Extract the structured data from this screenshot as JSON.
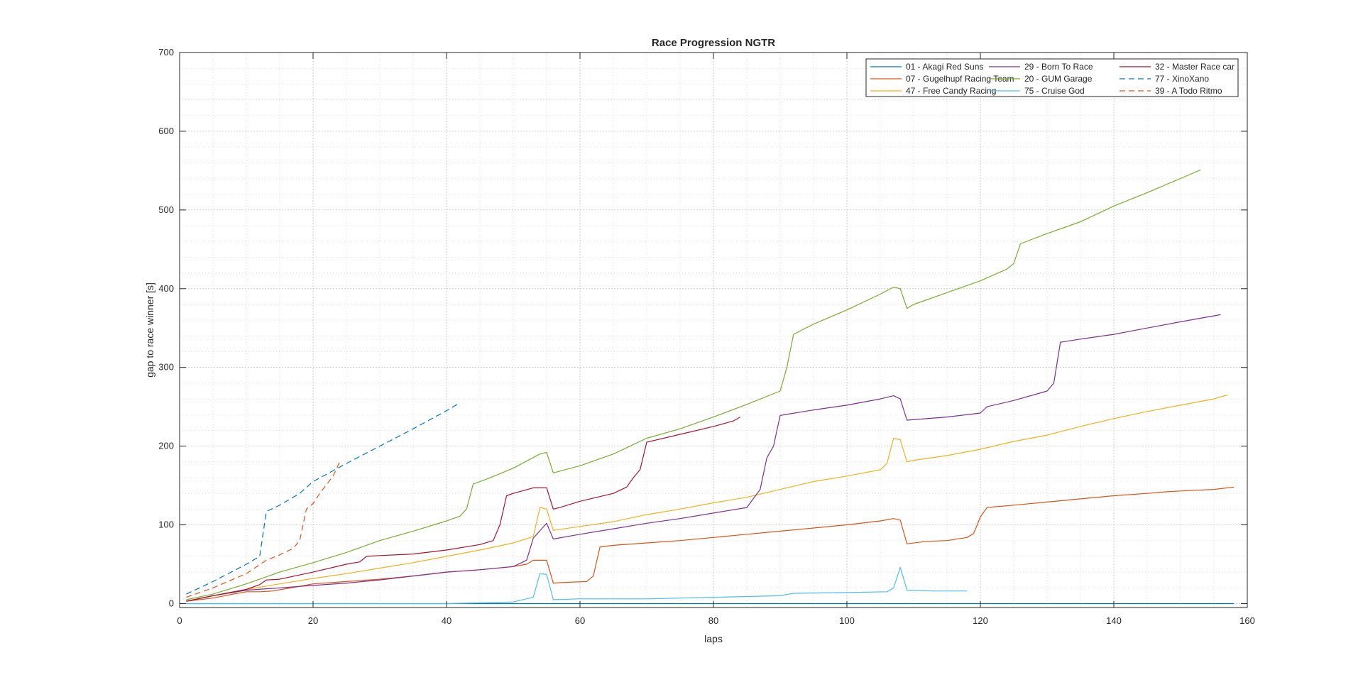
{
  "chart_data": {
    "type": "line",
    "title": "Race Progression NGTR",
    "xlabel": "laps",
    "ylabel": "gap to race winner [s]",
    "xlim": [
      0,
      160
    ],
    "ylim": [
      -5,
      700
    ],
    "xticks": [
      0,
      20,
      40,
      60,
      80,
      100,
      120,
      140,
      160
    ],
    "yticks": [
      0,
      100,
      200,
      300,
      400,
      500,
      600,
      700
    ],
    "grid": true,
    "minor_grid": true,
    "legend_position": "top-right",
    "series": [
      {
        "name": "01 - Akagi Red Suns",
        "color": "#0072BD",
        "dash": "solid",
        "points": [
          [
            1,
            0
          ],
          [
            158,
            0
          ]
        ]
      },
      {
        "name": "07 - Gugelhupf Racing Team",
        "color": "#D95319",
        "dash": "solid",
        "points": [
          [
            1,
            3
          ],
          [
            5,
            7
          ],
          [
            8,
            12
          ],
          [
            10,
            15
          ],
          [
            12,
            15
          ],
          [
            14,
            16
          ],
          [
            16,
            19
          ],
          [
            18,
            22
          ],
          [
            20,
            25
          ],
          [
            25,
            28
          ],
          [
            30,
            31
          ],
          [
            35,
            35
          ],
          [
            40,
            40
          ],
          [
            45,
            43
          ],
          [
            50,
            47
          ],
          [
            52,
            50
          ],
          [
            53,
            55
          ],
          [
            55,
            55
          ],
          [
            56,
            26
          ],
          [
            58,
            27
          ],
          [
            61,
            28
          ],
          [
            62,
            35
          ],
          [
            63,
            72
          ],
          [
            65,
            74
          ],
          [
            70,
            77
          ],
          [
            75,
            80
          ],
          [
            80,
            84
          ],
          [
            85,
            88
          ],
          [
            90,
            92
          ],
          [
            95,
            96
          ],
          [
            100,
            100
          ],
          [
            105,
            105
          ],
          [
            107,
            108
          ],
          [
            108,
            106
          ],
          [
            109,
            76
          ],
          [
            112,
            79
          ],
          [
            115,
            80
          ],
          [
            118,
            84
          ],
          [
            119,
            89
          ],
          [
            120,
            110
          ],
          [
            121,
            122
          ],
          [
            125,
            125
          ],
          [
            130,
            129
          ],
          [
            135,
            133
          ],
          [
            140,
            137
          ],
          [
            145,
            140
          ],
          [
            148,
            142
          ],
          [
            150,
            143
          ],
          [
            155,
            145
          ],
          [
            158,
            148
          ]
        ]
      },
      {
        "name": "47 - Free Candy Racing",
        "color": "#EDB120",
        "dash": "solid",
        "points": [
          [
            1,
            3
          ],
          [
            5,
            10
          ],
          [
            10,
            18
          ],
          [
            15,
            25
          ],
          [
            20,
            32
          ],
          [
            25,
            38
          ],
          [
            30,
            45
          ],
          [
            35,
            52
          ],
          [
            40,
            60
          ],
          [
            45,
            68
          ],
          [
            50,
            77
          ],
          [
            53,
            85
          ],
          [
            54,
            122
          ],
          [
            55,
            120
          ],
          [
            56,
            93
          ],
          [
            60,
            98
          ],
          [
            65,
            104
          ],
          [
            70,
            113
          ],
          [
            75,
            120
          ],
          [
            80,
            128
          ],
          [
            85,
            135
          ],
          [
            90,
            145
          ],
          [
            95,
            155
          ],
          [
            100,
            162
          ],
          [
            105,
            170
          ],
          [
            106,
            178
          ],
          [
            107,
            210
          ],
          [
            108,
            208
          ],
          [
            109,
            180
          ],
          [
            110,
            182
          ],
          [
            115,
            188
          ],
          [
            120,
            196
          ],
          [
            125,
            206
          ],
          [
            130,
            214
          ],
          [
            135,
            225
          ],
          [
            140,
            235
          ],
          [
            145,
            244
          ],
          [
            150,
            252
          ],
          [
            155,
            260
          ],
          [
            157,
            265
          ]
        ]
      },
      {
        "name": "29 - Born To Race",
        "color": "#7E2F8E",
        "dash": "solid",
        "points": [
          [
            1,
            3
          ],
          [
            5,
            10
          ],
          [
            10,
            17
          ],
          [
            15,
            20
          ],
          [
            20,
            23
          ],
          [
            25,
            26
          ],
          [
            30,
            30
          ],
          [
            35,
            35
          ],
          [
            40,
            40
          ],
          [
            45,
            43
          ],
          [
            50,
            47
          ],
          [
            52,
            55
          ],
          [
            53,
            83
          ],
          [
            55,
            102
          ],
          [
            56,
            82
          ],
          [
            60,
            88
          ],
          [
            65,
            95
          ],
          [
            70,
            102
          ],
          [
            75,
            108
          ],
          [
            80,
            115
          ],
          [
            85,
            122
          ],
          [
            87,
            145
          ],
          [
            88,
            185
          ],
          [
            89,
            200
          ],
          [
            90,
            239
          ],
          [
            95,
            246
          ],
          [
            100,
            252
          ],
          [
            105,
            260
          ],
          [
            107,
            264
          ],
          [
            108,
            260
          ],
          [
            109,
            233
          ],
          [
            115,
            237
          ],
          [
            120,
            242
          ],
          [
            121,
            250
          ],
          [
            125,
            258
          ],
          [
            130,
            270
          ],
          [
            131,
            280
          ],
          [
            132,
            332
          ],
          [
            135,
            336
          ],
          [
            140,
            342
          ],
          [
            145,
            350
          ],
          [
            150,
            358
          ],
          [
            156,
            367
          ]
        ]
      },
      {
        "name": "20 - GUM Garage",
        "color": "#77AC30",
        "dash": "solid",
        "points": [
          [
            1,
            5
          ],
          [
            5,
            12
          ],
          [
            10,
            25
          ],
          [
            15,
            40
          ],
          [
            20,
            52
          ],
          [
            25,
            65
          ],
          [
            30,
            80
          ],
          [
            35,
            92
          ],
          [
            40,
            105
          ],
          [
            42,
            111
          ],
          [
            43,
            120
          ],
          [
            44,
            152
          ],
          [
            46,
            158
          ],
          [
            50,
            172
          ],
          [
            54,
            190
          ],
          [
            55,
            192
          ],
          [
            56,
            166
          ],
          [
            60,
            175
          ],
          [
            65,
            190
          ],
          [
            70,
            210
          ],
          [
            75,
            222
          ],
          [
            80,
            237
          ],
          [
            85,
            253
          ],
          [
            90,
            270
          ],
          [
            91,
            300
          ],
          [
            92,
            342
          ],
          [
            95,
            355
          ],
          [
            100,
            373
          ],
          [
            105,
            393
          ],
          [
            107,
            402
          ],
          [
            108,
            400
          ],
          [
            109,
            375
          ],
          [
            110,
            380
          ],
          [
            115,
            395
          ],
          [
            120,
            410
          ],
          [
            124,
            425
          ],
          [
            125,
            432
          ],
          [
            126,
            457
          ],
          [
            130,
            470
          ],
          [
            135,
            485
          ],
          [
            140,
            505
          ],
          [
            145,
            522
          ],
          [
            150,
            540
          ],
          [
            153,
            551
          ]
        ]
      },
      {
        "name": "75 - Cruise God",
        "color": "#4DBEEE",
        "dash": "solid",
        "points": [
          [
            1,
            0
          ],
          [
            10,
            0
          ],
          [
            20,
            0
          ],
          [
            30,
            0
          ],
          [
            40,
            0
          ],
          [
            50,
            2
          ],
          [
            53,
            8
          ],
          [
            54,
            38
          ],
          [
            55,
            37
          ],
          [
            56,
            5
          ],
          [
            60,
            6
          ],
          [
            70,
            6
          ],
          [
            80,
            8
          ],
          [
            90,
            10
          ],
          [
            92,
            13
          ],
          [
            100,
            14
          ],
          [
            106,
            15
          ],
          [
            107,
            20
          ],
          [
            108,
            46
          ],
          [
            109,
            17
          ],
          [
            113,
            16
          ],
          [
            118,
            16
          ]
        ]
      },
      {
        "name": "32 - Master Race car",
        "color": "#A2142F",
        "dash": "solid",
        "points": [
          [
            1,
            3
          ],
          [
            5,
            10
          ],
          [
            10,
            18
          ],
          [
            12,
            24
          ],
          [
            13,
            30
          ],
          [
            15,
            31
          ],
          [
            20,
            40
          ],
          [
            25,
            50
          ],
          [
            27,
            53
          ],
          [
            28,
            60
          ],
          [
            30,
            61
          ],
          [
            35,
            63
          ],
          [
            40,
            68
          ],
          [
            45,
            75
          ],
          [
            47,
            80
          ],
          [
            48,
            100
          ],
          [
            49,
            137
          ],
          [
            50,
            140
          ],
          [
            53,
            147
          ],
          [
            55,
            147
          ],
          [
            56,
            120
          ],
          [
            57,
            122
          ],
          [
            60,
            130
          ],
          [
            65,
            140
          ],
          [
            67,
            148
          ],
          [
            68,
            160
          ],
          [
            69,
            170
          ],
          [
            70,
            205
          ],
          [
            75,
            215
          ],
          [
            80,
            225
          ],
          [
            83,
            232
          ],
          [
            84,
            237
          ]
        ]
      },
      {
        "name": "77 - XinoXano",
        "color": "#0072BD",
        "dash": "dashed",
        "points": [
          [
            1,
            12
          ],
          [
            5,
            28
          ],
          [
            10,
            50
          ],
          [
            12,
            60
          ],
          [
            13,
            117
          ],
          [
            15,
            125
          ],
          [
            18,
            140
          ],
          [
            20,
            155
          ],
          [
            25,
            178
          ],
          [
            30,
            200
          ],
          [
            35,
            222
          ],
          [
            40,
            245
          ],
          [
            42,
            255
          ]
        ]
      },
      {
        "name": "39 - A Todo Ritmo",
        "color": "#D95319",
        "dash": "dashed",
        "points": [
          [
            1,
            8
          ],
          [
            5,
            20
          ],
          [
            10,
            38
          ],
          [
            13,
            55
          ],
          [
            15,
            62
          ],
          [
            17,
            70
          ],
          [
            18,
            80
          ],
          [
            19,
            120
          ],
          [
            20,
            127
          ],
          [
            21,
            140
          ],
          [
            23,
            162
          ],
          [
            24,
            180
          ]
        ]
      }
    ]
  }
}
